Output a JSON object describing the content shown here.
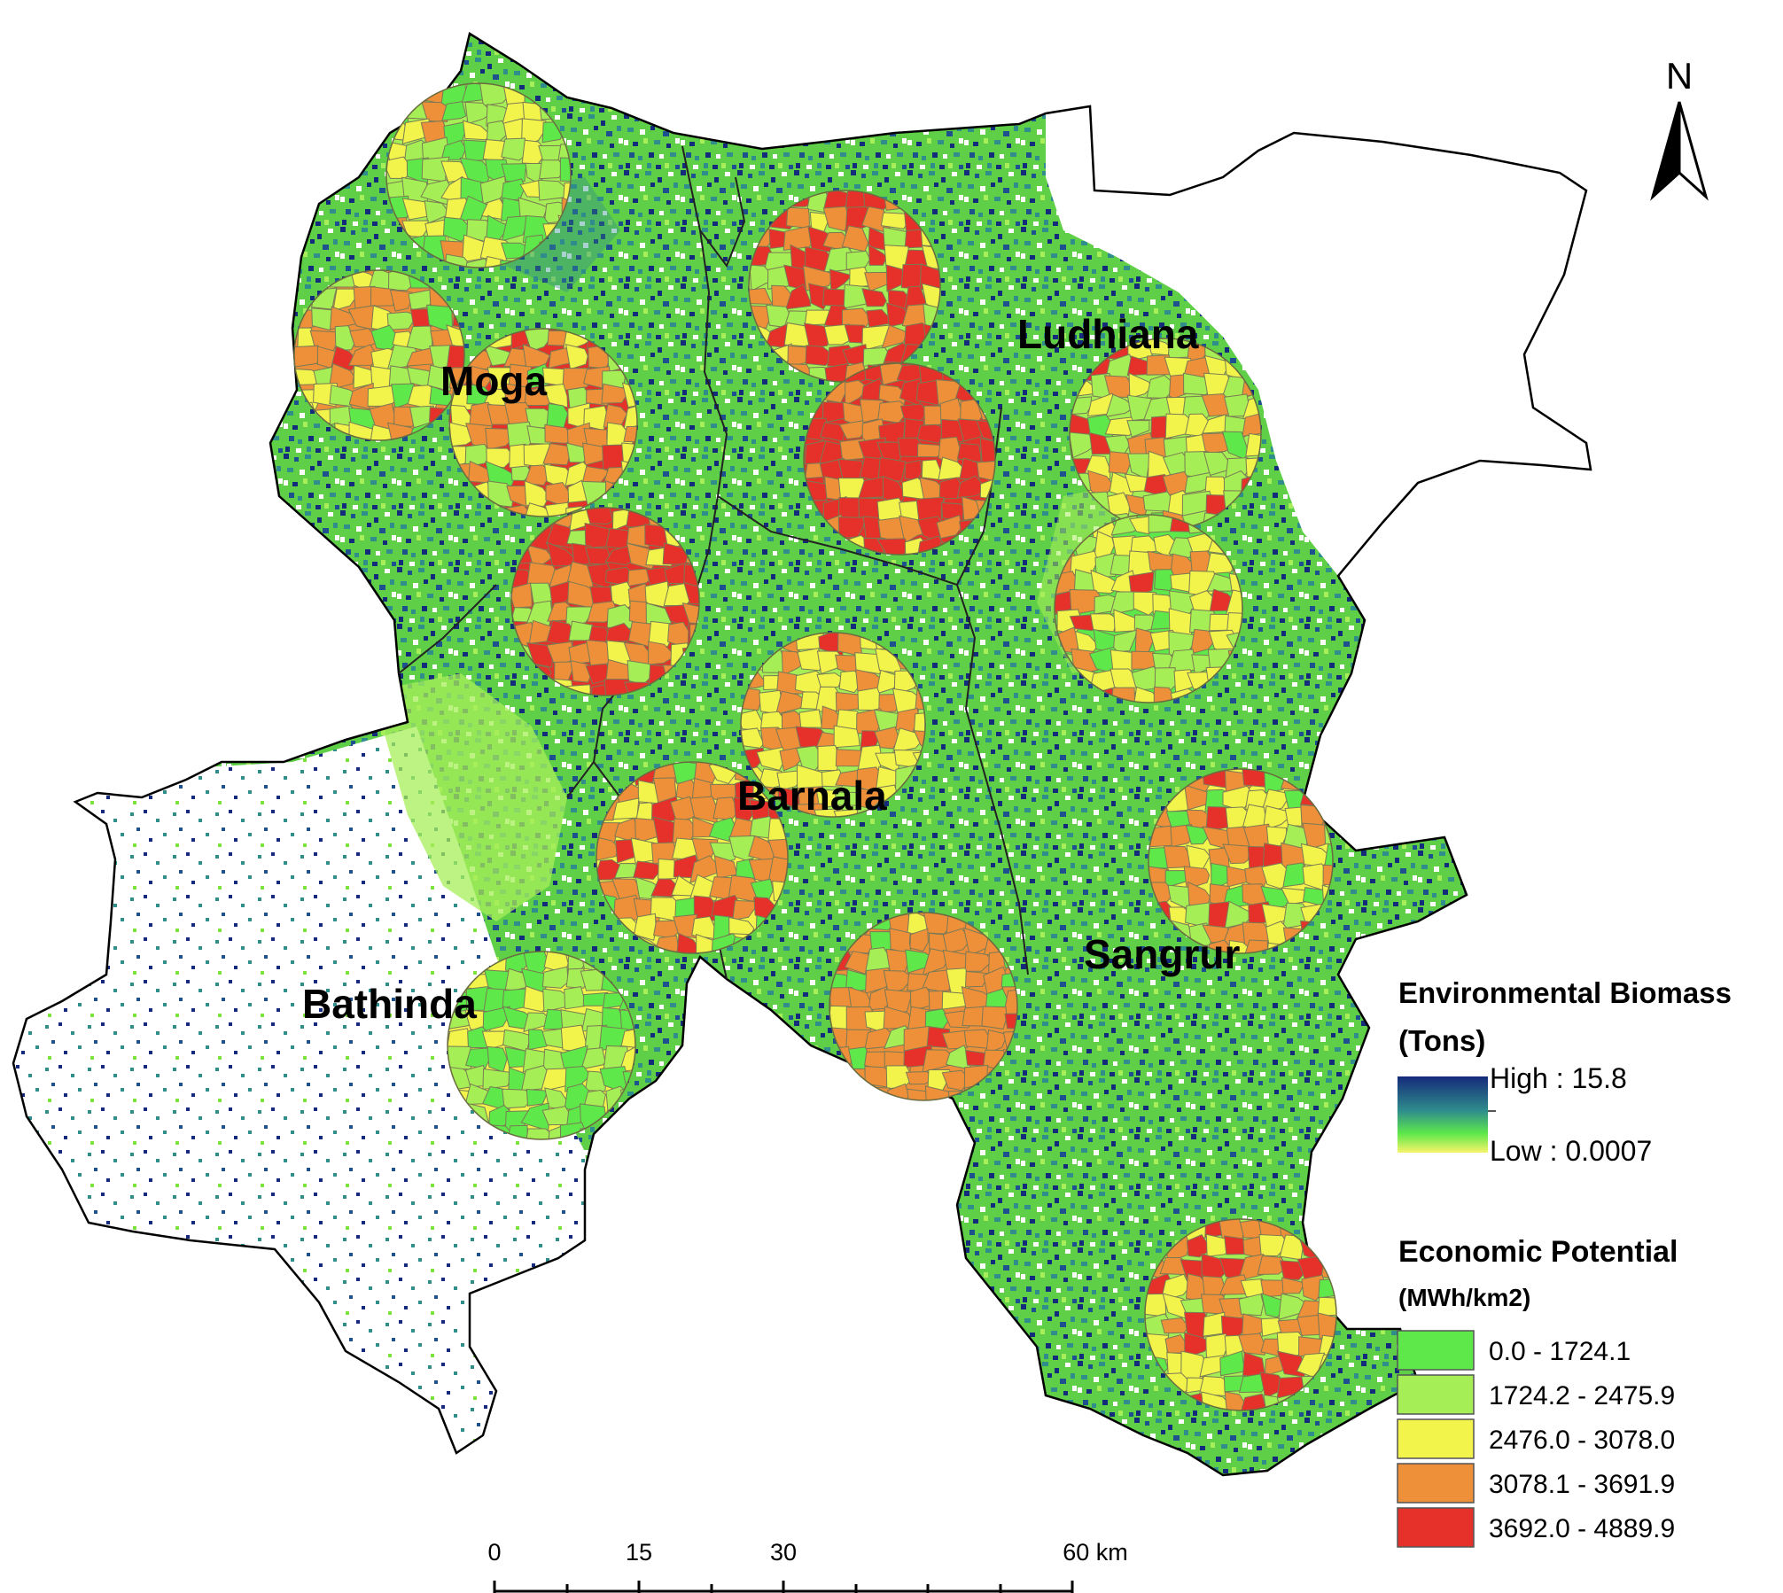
{
  "districts": [
    "Moga",
    "Ludhiana",
    "Barnala",
    "Sangrur",
    "Bathinda"
  ],
  "north_arrow": {
    "label": "N"
  },
  "legend": {
    "biomass_title_line1": "Environmental Biomass",
    "biomass_title_line2": "(Tons)",
    "biomass_high": "High : 15.8",
    "biomass_low": "Low : 0.0007",
    "economic_title_line1": "Economic  Potential",
    "economic_title_line2": "(MWh/km2)",
    "classes": [
      {
        "label": "0.0 - 1724.1",
        "color": "#5ee84a"
      },
      {
        "label": "1724.2 - 2475.9",
        "color": "#a6ee55"
      },
      {
        "label": "2476.0 - 3078.0",
        "color": "#f3f44b"
      },
      {
        "label": "3078.1 - 3691.9",
        "color": "#ee8f3a"
      },
      {
        "label": "3692.0 - 4889.9",
        "color": "#e5312a"
      }
    ]
  },
  "scale_bar": {
    "labels": [
      "0",
      "15",
      "30",
      "60 km"
    ]
  },
  "colors": {
    "biomass_high": "#142a7a",
    "biomass_mid": "#2f8d8c",
    "biomass_low_green": "#7fe03c",
    "biomass_lowest": "#f8f46a",
    "boundary": "#000000"
  }
}
